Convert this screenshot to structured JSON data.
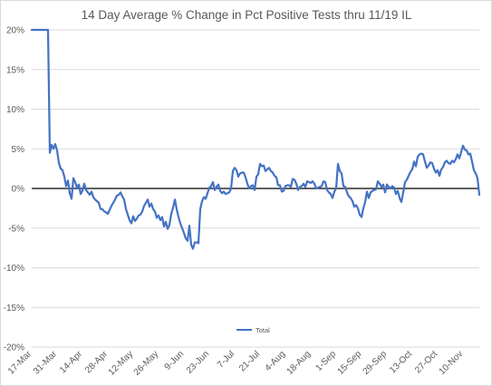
{
  "chart_data": {
    "type": "line",
    "title": "14 Day Average % Change in Pct Positive Tests thru 11/19 IL",
    "xlabel": "",
    "ylabel": "",
    "x_tick_labels": [
      "17-Mar",
      "31-Mar",
      "14-Apr",
      "28-Apr",
      "12-May",
      "26-May",
      "9-Jun",
      "23-Jun",
      "7-Jul",
      "21-Jul",
      "4-Aug",
      "18-Aug",
      "1-Sep",
      "15-Sep",
      "29-Sep",
      "13-Oct",
      "27-Oct",
      "10-Nov"
    ],
    "y_tick_labels": [
      "20%",
      "15%",
      "10%",
      "5%",
      "0%",
      "-5%",
      "-10%",
      "-15%",
      "-20%"
    ],
    "ylim": [
      -20,
      20
    ],
    "x_start": "17-Mar",
    "x_end": "19-Nov",
    "grid": true,
    "legend": "bottom",
    "series": [
      {
        "name": "Total",
        "color": "#4472c4",
        "points": [
          [
            "17-Mar",
            20
          ],
          [
            "23-Mar",
            20
          ],
          [
            "26-Mar",
            20
          ],
          [
            "27-Mar",
            4.5
          ],
          [
            "28-Mar",
            5.5
          ],
          [
            "29-Mar",
            5
          ],
          [
            "30-Mar",
            5.6
          ],
          [
            "31-Mar",
            4.8
          ],
          [
            "1-Apr",
            3.2
          ],
          [
            "2-Apr",
            2.5
          ],
          [
            "3-Apr",
            2.3
          ],
          [
            "4-Apr",
            1.5
          ],
          [
            "5-Apr",
            0.3
          ],
          [
            "6-Apr",
            1
          ],
          [
            "7-Apr",
            -0.6
          ],
          [
            "8-Apr",
            -1.3
          ],
          [
            "9-Apr",
            1.3
          ],
          [
            "10-Apr",
            0.8
          ],
          [
            "11-Apr",
            0.1
          ],
          [
            "12-Apr",
            0.5
          ],
          [
            "13-Apr",
            -0.7
          ],
          [
            "14-Apr",
            -0.3
          ],
          [
            "15-Apr",
            0.6
          ],
          [
            "16-Apr",
            -0.2
          ],
          [
            "17-Apr",
            -0.5
          ],
          [
            "18-Apr",
            -0.8
          ],
          [
            "19-Apr",
            -0.4
          ],
          [
            "20-Apr",
            -1.1
          ],
          [
            "21-Apr",
            -1.4
          ],
          [
            "22-Apr",
            -1.6
          ],
          [
            "23-Apr",
            -1.8
          ],
          [
            "24-Apr",
            -2.6
          ],
          [
            "25-Apr",
            -2.6
          ],
          [
            "26-Apr",
            -2.9
          ],
          [
            "27-Apr",
            -3
          ],
          [
            "28-Apr",
            -3.2
          ],
          [
            "29-Apr",
            -2.7
          ],
          [
            "30-Apr",
            -2.2
          ],
          [
            "1-May",
            -1.8
          ],
          [
            "2-May",
            -1.4
          ],
          [
            "3-May",
            -0.9
          ],
          [
            "4-May",
            -0.8
          ],
          [
            "5-May",
            -0.5
          ],
          [
            "6-May",
            -1
          ],
          [
            "7-May",
            -1.4
          ],
          [
            "8-May",
            -2.6
          ],
          [
            "9-May",
            -3.3
          ],
          [
            "10-May",
            -4
          ],
          [
            "11-May",
            -4.4
          ],
          [
            "12-May",
            -3.5
          ],
          [
            "13-May",
            -4.1
          ],
          [
            "14-May",
            -3.8
          ],
          [
            "15-May",
            -3.4
          ],
          [
            "16-May",
            -3.3
          ],
          [
            "17-May",
            -2.9
          ],
          [
            "18-May",
            -2.2
          ],
          [
            "19-May",
            -1.8
          ],
          [
            "20-May",
            -1.4
          ],
          [
            "21-May",
            -2.3
          ],
          [
            "22-May",
            -1.9
          ],
          [
            "23-May",
            -2.6
          ],
          [
            "24-May",
            -2.9
          ],
          [
            "25-May",
            -3.7
          ],
          [
            "26-May",
            -3.4
          ],
          [
            "27-May",
            -4
          ],
          [
            "28-May",
            -3.6
          ],
          [
            "29-May",
            -4.8
          ],
          [
            "30-May",
            -4.2
          ],
          [
            "31-May",
            -5.1
          ],
          [
            "1-Jun",
            -4.6
          ],
          [
            "2-Jun",
            -3.2
          ],
          [
            "3-Jun",
            -2.4
          ],
          [
            "4-Jun",
            -1.4
          ],
          [
            "5-Jun",
            -2.6
          ],
          [
            "6-Jun",
            -3.6
          ],
          [
            "7-Jun",
            -4.4
          ],
          [
            "8-Jun",
            -5
          ],
          [
            "9-Jun",
            -5.6
          ],
          [
            "10-Jun",
            -6.3
          ],
          [
            "11-Jun",
            -6.6
          ],
          [
            "12-Jun",
            -4.7
          ],
          [
            "13-Jun",
            -7.1
          ],
          [
            "14-Jun",
            -7.6
          ],
          [
            "15-Jun",
            -6.8
          ],
          [
            "16-Jun",
            -6.8
          ],
          [
            "17-Jun",
            -6.9
          ],
          [
            "18-Jun",
            -2.6
          ],
          [
            "19-Jun",
            -1.6
          ],
          [
            "20-Jun",
            -1.1
          ],
          [
            "21-Jun",
            -1.3
          ],
          [
            "22-Jun",
            -0.6
          ],
          [
            "23-Jun",
            0.1
          ],
          [
            "24-Jun",
            0.3
          ],
          [
            "25-Jun",
            0.8
          ],
          [
            "26-Jun",
            -0.2
          ],
          [
            "27-Jun",
            0.2
          ],
          [
            "28-Jun",
            0.5
          ],
          [
            "29-Jun",
            -0.3
          ],
          [
            "30-Jun",
            -0.6
          ],
          [
            "1-Jul",
            -0.4
          ],
          [
            "2-Jul",
            -0.7
          ],
          [
            "3-Jul",
            -0.6
          ],
          [
            "4-Jul",
            -0.5
          ],
          [
            "5-Jul",
            0
          ],
          [
            "6-Jul",
            2.2
          ],
          [
            "7-Jul",
            2.6
          ],
          [
            "8-Jul",
            2.3
          ],
          [
            "9-Jul",
            1.5
          ],
          [
            "10-Jul",
            1.9
          ],
          [
            "11-Jul",
            2
          ],
          [
            "12-Jul",
            2
          ],
          [
            "13-Jul",
            1.4
          ],
          [
            "14-Jul",
            0.6
          ],
          [
            "15-Jul",
            0
          ],
          [
            "16-Jul",
            0.3
          ],
          [
            "17-Jul",
            0.4
          ],
          [
            "18-Jul",
            -0.2
          ],
          [
            "19-Jul",
            1.5
          ],
          [
            "20-Jul",
            1.8
          ],
          [
            "21-Jul",
            3.1
          ],
          [
            "22-Jul",
            2.8
          ],
          [
            "23-Jul",
            2.9
          ],
          [
            "24-Jul",
            2.2
          ],
          [
            "25-Jul",
            2.4
          ],
          [
            "26-Jul",
            2.6
          ],
          [
            "27-Jul",
            2.2
          ],
          [
            "28-Jul",
            2
          ],
          [
            "29-Jul",
            1.6
          ],
          [
            "30-Jul",
            1.4
          ],
          [
            "31-Jul",
            0.4
          ],
          [
            "1-Aug",
            0.4
          ],
          [
            "2-Aug",
            -0.4
          ],
          [
            "3-Aug",
            -0.3
          ],
          [
            "4-Aug",
            0.3
          ],
          [
            "5-Aug",
            0.4
          ],
          [
            "6-Aug",
            0.4
          ],
          [
            "7-Aug",
            0.2
          ],
          [
            "8-Aug",
            1.2
          ],
          [
            "9-Aug",
            1.1
          ],
          [
            "10-Aug",
            0.6
          ],
          [
            "11-Aug",
            -0.2
          ],
          [
            "12-Aug",
            0.2
          ],
          [
            "13-Aug",
            0.3
          ],
          [
            "14-Aug",
            0.6
          ],
          [
            "15-Aug",
            0.2
          ],
          [
            "16-Aug",
            0.9
          ],
          [
            "17-Aug",
            0.8
          ],
          [
            "18-Aug",
            0.7
          ],
          [
            "19-Aug",
            0.9
          ],
          [
            "20-Aug",
            0.6
          ],
          [
            "21-Aug",
            0
          ],
          [
            "22-Aug",
            0.1
          ],
          [
            "23-Aug",
            0.2
          ],
          [
            "24-Aug",
            0.3
          ],
          [
            "25-Aug",
            0.9
          ],
          [
            "26-Aug",
            0.8
          ],
          [
            "27-Aug",
            -0.2
          ],
          [
            "28-Aug",
            -0.5
          ],
          [
            "29-Aug",
            -0.7
          ],
          [
            "30-Aug",
            -1.2
          ],
          [
            "31-Aug",
            -0.4
          ],
          [
            "1-Sep",
            0
          ],
          [
            "2-Sep",
            3.1
          ],
          [
            "3-Sep",
            2.2
          ],
          [
            "4-Sep",
            1.9
          ],
          [
            "5-Sep",
            0.3
          ],
          [
            "6-Sep",
            0.2
          ],
          [
            "7-Sep",
            -0.5
          ],
          [
            "8-Sep",
            -1
          ],
          [
            "9-Sep",
            -1.2
          ],
          [
            "10-Sep",
            -1.6
          ],
          [
            "11-Sep",
            -2.3
          ],
          [
            "12-Sep",
            -2.1
          ],
          [
            "13-Sep",
            -2.5
          ],
          [
            "14-Sep",
            -3.3
          ],
          [
            "15-Sep",
            -3.6
          ],
          [
            "16-Sep",
            -2.5
          ],
          [
            "17-Sep",
            -1.7
          ],
          [
            "18-Sep",
            -0.4
          ],
          [
            "19-Sep",
            -1.2
          ],
          [
            "20-Sep",
            -0.5
          ],
          [
            "21-Sep",
            -0.3
          ],
          [
            "22-Sep",
            -0.2
          ],
          [
            "23-Sep",
            -0.1
          ],
          [
            "24-Sep",
            0.9
          ],
          [
            "25-Sep",
            0.6
          ],
          [
            "26-Sep",
            0.2
          ],
          [
            "27-Sep",
            0.5
          ],
          [
            "28-Sep",
            -0.5
          ],
          [
            "29-Sep",
            0.5
          ],
          [
            "30-Sep",
            0.2
          ],
          [
            "1-Oct",
            0
          ],
          [
            "2-Oct",
            0.3
          ],
          [
            "3-Oct",
            0.1
          ],
          [
            "4-Oct",
            -0.7
          ],
          [
            "5-Oct",
            -0.3
          ],
          [
            "6-Oct",
            -1.2
          ],
          [
            "7-Oct",
            -1.7
          ],
          [
            "8-Oct",
            -0.5
          ],
          [
            "9-Oct",
            0.8
          ],
          [
            "10-Oct",
            1.1
          ],
          [
            "11-Oct",
            1.6
          ],
          [
            "12-Oct",
            2.1
          ],
          [
            "13-Oct",
            2.4
          ],
          [
            "14-Oct",
            3.4
          ],
          [
            "15-Oct",
            2.8
          ],
          [
            "16-Oct",
            4
          ],
          [
            "17-Oct",
            4.3
          ],
          [
            "18-Oct",
            4.4
          ],
          [
            "19-Oct",
            4.3
          ],
          [
            "20-Oct",
            3.4
          ],
          [
            "21-Oct",
            2.6
          ],
          [
            "22-Oct",
            2.9
          ],
          [
            "23-Oct",
            3.3
          ],
          [
            "24-Oct",
            3.2
          ],
          [
            "25-Oct",
            2.5
          ],
          [
            "26-Oct",
            2
          ],
          [
            "27-Oct",
            2.3
          ],
          [
            "28-Oct",
            1.6
          ],
          [
            "29-Oct",
            2.4
          ],
          [
            "30-Oct",
            2.7
          ],
          [
            "31-Oct",
            3.3
          ],
          [
            "1-Nov",
            3.5
          ],
          [
            "2-Nov",
            3.2
          ],
          [
            "3-Nov",
            3.1
          ],
          [
            "4-Nov",
            3.5
          ],
          [
            "5-Nov",
            3.3
          ],
          [
            "6-Nov",
            3.7
          ],
          [
            "7-Nov",
            4.3
          ],
          [
            "8-Nov",
            3.8
          ],
          [
            "9-Nov",
            4.6
          ],
          [
            "10-Nov",
            5.4
          ],
          [
            "11-Nov",
            4.9
          ],
          [
            "12-Nov",
            4.8
          ],
          [
            "13-Nov",
            4.3
          ],
          [
            "14-Nov",
            4.4
          ],
          [
            "15-Nov",
            3.4
          ],
          [
            "16-Nov",
            2.3
          ],
          [
            "17-Nov",
            1.9
          ],
          [
            "18-Nov",
            1.3
          ],
          [
            "19-Nov",
            -0.8
          ]
        ]
      }
    ]
  }
}
